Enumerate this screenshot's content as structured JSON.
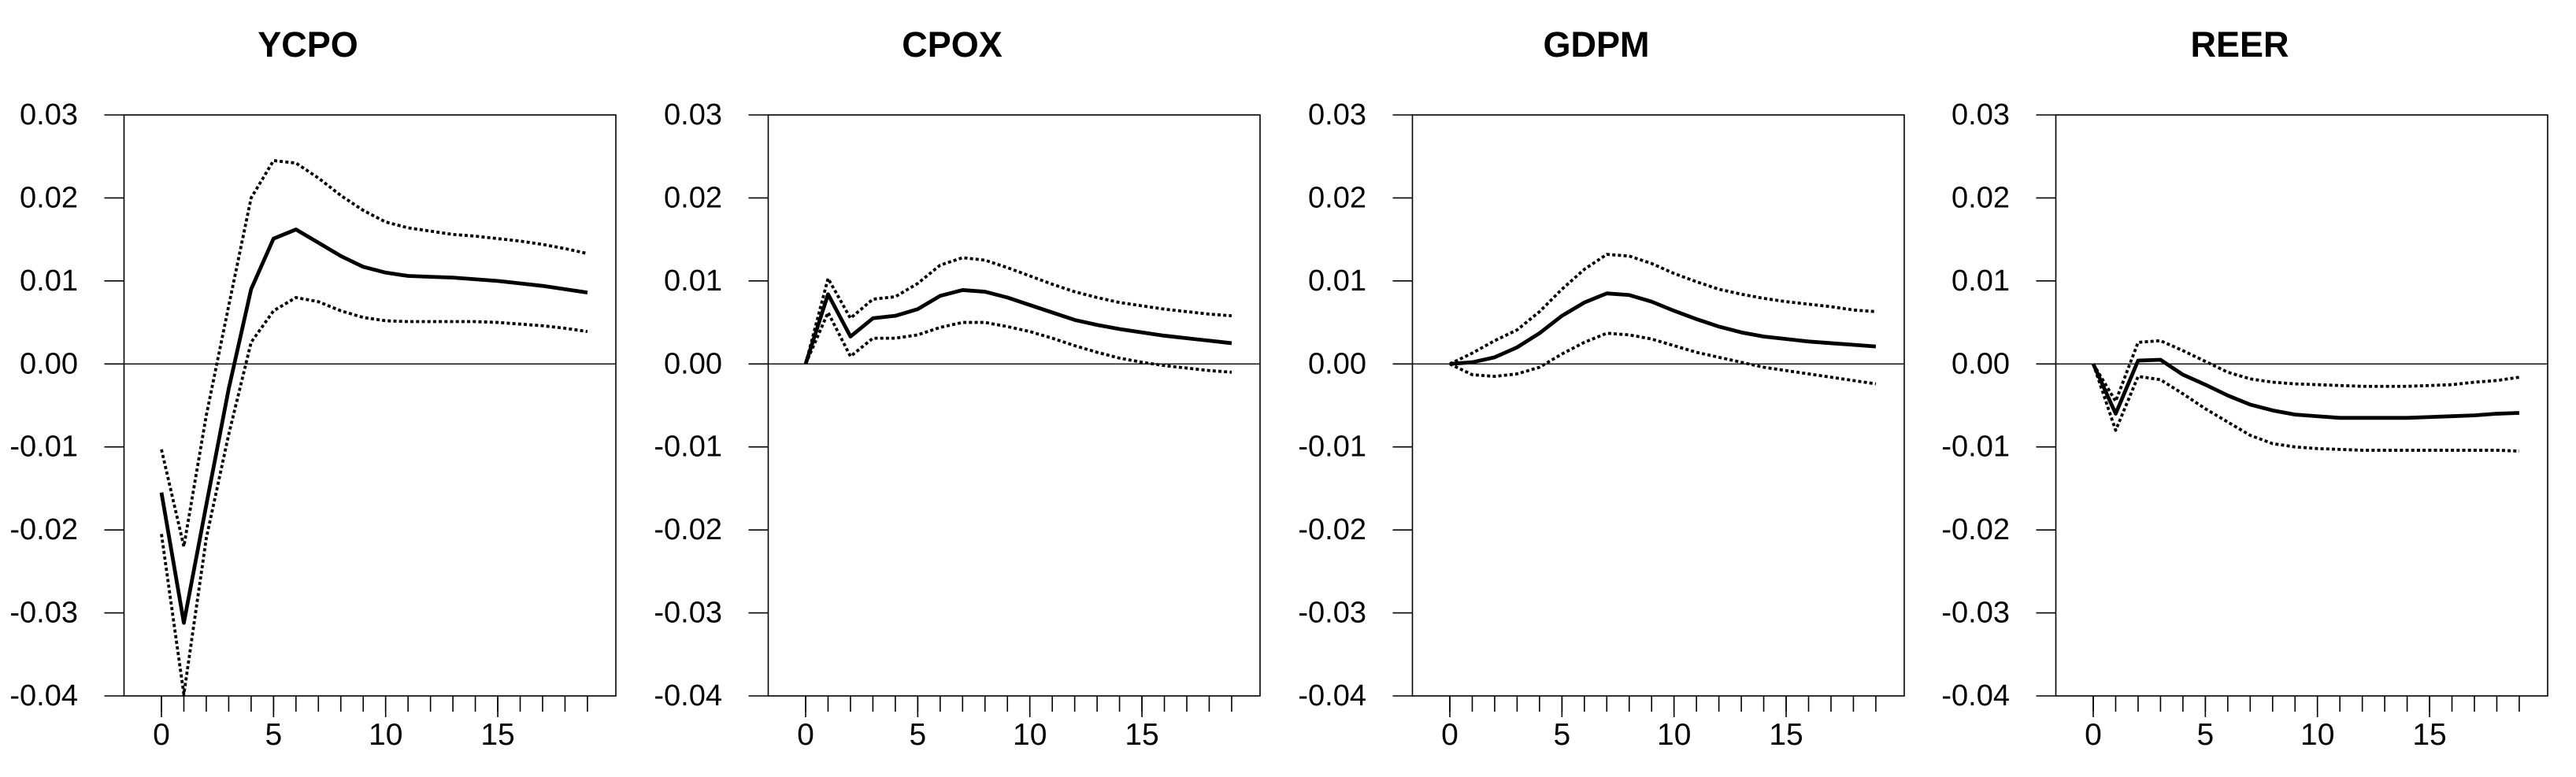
{
  "figure": {
    "kind": "impulse-response-grid",
    "background_color": "#ffffff",
    "line_color": "#000000",
    "panel_titles": [
      "YCPO",
      "CPOX",
      "GDPM",
      "REER"
    ]
  },
  "axes": {
    "ylim": [
      -0.04,
      0.03
    ],
    "y_ticks": [
      0.03,
      0.02,
      0.01,
      0.0,
      -0.01,
      -0.02,
      -0.03,
      -0.04
    ],
    "y_tick_labels": [
      "0.03",
      "0.02",
      "0.01",
      "0.00",
      "-0.01",
      "-0.02",
      "-0.03",
      "-0.04"
    ],
    "x_minor_ticks": [
      0,
      1,
      2,
      3,
      4,
      5,
      6,
      7,
      8,
      9,
      10,
      11,
      12,
      13,
      14,
      15,
      16,
      17,
      18,
      19
    ],
    "x_major_ticks": [
      0,
      5,
      10,
      15
    ],
    "x_major_labels": [
      "0",
      "5",
      "10",
      "15"
    ],
    "grid": false,
    "legend": "none",
    "zero_line": true
  },
  "chart_data": [
    {
      "type": "line",
      "title": "YCPO",
      "xlabel": "",
      "ylabel": "",
      "ylim": [
        -0.04,
        0.03
      ],
      "x": [
        0,
        1,
        2,
        3,
        4,
        5,
        6,
        7,
        8,
        9,
        10,
        11,
        12,
        13,
        14,
        15,
        16,
        17,
        18,
        19
      ],
      "series": [
        {
          "name": "point-estimate",
          "style": "solid",
          "values": [
            -0.0155,
            -0.0312,
            -0.017,
            -0.003,
            0.009,
            0.0151,
            0.0162,
            0.0146,
            0.013,
            0.0117,
            0.011,
            0.0106,
            0.0105,
            0.0104,
            0.0102,
            0.01,
            0.0097,
            0.0094,
            0.009,
            0.0086
          ]
        },
        {
          "name": "upper-confidence-band",
          "style": "dotted",
          "values": [
            -0.0103,
            -0.022,
            -0.0062,
            0.007,
            0.02,
            0.0245,
            0.0242,
            0.0224,
            0.0203,
            0.0185,
            0.0171,
            0.0164,
            0.016,
            0.0156,
            0.0154,
            0.0151,
            0.0148,
            0.0144,
            0.0139,
            0.0133
          ]
        },
        {
          "name": "lower-confidence-band",
          "style": "dotted",
          "values": [
            -0.0205,
            -0.0398,
            -0.021,
            -0.0085,
            0.0026,
            0.0064,
            0.008,
            0.0075,
            0.0064,
            0.0056,
            0.0052,
            0.0051,
            0.0051,
            0.0051,
            0.0051,
            0.005,
            0.0048,
            0.0046,
            0.0043,
            0.0039
          ]
        }
      ]
    },
    {
      "type": "line",
      "title": "CPOX",
      "xlabel": "",
      "ylabel": "",
      "ylim": [
        -0.04,
        0.03
      ],
      "x": [
        0,
        1,
        2,
        3,
        4,
        5,
        6,
        7,
        8,
        9,
        10,
        11,
        12,
        13,
        14,
        15,
        16,
        17,
        18,
        19
      ],
      "series": [
        {
          "name": "point-estimate",
          "style": "solid",
          "values": [
            0.0,
            0.0084,
            0.0033,
            0.0055,
            0.0058,
            0.0066,
            0.0082,
            0.0089,
            0.0087,
            0.008,
            0.0071,
            0.0062,
            0.0053,
            0.0047,
            0.0042,
            0.0038,
            0.0034,
            0.0031,
            0.0028,
            0.0025
          ]
        },
        {
          "name": "upper-confidence-band",
          "style": "dotted",
          "values": [
            0.0,
            0.0103,
            0.0055,
            0.0078,
            0.0081,
            0.0097,
            0.0119,
            0.0128,
            0.0125,
            0.0116,
            0.0106,
            0.0096,
            0.0087,
            0.008,
            0.0074,
            0.007,
            0.0066,
            0.0063,
            0.006,
            0.0058
          ]
        },
        {
          "name": "lower-confidence-band",
          "style": "dotted",
          "values": [
            0.0,
            0.0062,
            0.0009,
            0.0031,
            0.0031,
            0.0035,
            0.0044,
            0.005,
            0.005,
            0.0045,
            0.0039,
            0.0031,
            0.0022,
            0.0014,
            0.0007,
            0.0002,
            -0.0002,
            -0.0005,
            -0.0008,
            -0.001
          ]
        }
      ]
    },
    {
      "type": "line",
      "title": "GDPM",
      "xlabel": "",
      "ylabel": "",
      "ylim": [
        -0.04,
        0.03
      ],
      "x": [
        0,
        1,
        2,
        3,
        4,
        5,
        6,
        7,
        8,
        9,
        10,
        11,
        12,
        13,
        14,
        15,
        16,
        17,
        18,
        19
      ],
      "series": [
        {
          "name": "point-estimate",
          "style": "solid",
          "values": [
            0.0,
            0.0002,
            0.0008,
            0.002,
            0.0037,
            0.0058,
            0.0074,
            0.0085,
            0.0083,
            0.0075,
            0.0064,
            0.0054,
            0.0045,
            0.0038,
            0.0033,
            0.003,
            0.0027,
            0.0025,
            0.0023,
            0.0021
          ]
        },
        {
          "name": "upper-confidence-band",
          "style": "dotted",
          "values": [
            0.0,
            0.0013,
            0.0028,
            0.0041,
            0.0063,
            0.009,
            0.0114,
            0.0132,
            0.013,
            0.0121,
            0.0109,
            0.0099,
            0.009,
            0.0084,
            0.0079,
            0.0075,
            0.0072,
            0.0069,
            0.0065,
            0.0063
          ]
        },
        {
          "name": "lower-confidence-band",
          "style": "dotted",
          "values": [
            0.0,
            -0.0013,
            -0.0015,
            -0.0012,
            -0.0004,
            0.0012,
            0.0026,
            0.0037,
            0.0035,
            0.003,
            0.0022,
            0.0014,
            0.0008,
            0.0002,
            -0.0004,
            -0.0008,
            -0.0012,
            -0.0016,
            -0.002,
            -0.0024
          ]
        }
      ]
    },
    {
      "type": "line",
      "title": "REER",
      "xlabel": "",
      "ylabel": "",
      "ylim": [
        -0.04,
        0.03
      ],
      "x": [
        0,
        1,
        2,
        3,
        4,
        5,
        6,
        7,
        8,
        9,
        10,
        11,
        12,
        13,
        14,
        15,
        16,
        17,
        18,
        19
      ],
      "series": [
        {
          "name": "point-estimate",
          "style": "solid",
          "values": [
            0.0,
            -0.006,
            0.0004,
            0.0005,
            -0.0013,
            -0.0025,
            -0.0038,
            -0.0049,
            -0.0056,
            -0.0061,
            -0.0063,
            -0.0065,
            -0.0065,
            -0.0065,
            -0.0065,
            -0.0064,
            -0.0063,
            -0.0062,
            -0.006,
            -0.0059
          ]
        },
        {
          "name": "upper-confidence-band",
          "style": "dotted",
          "values": [
            0.0,
            -0.0045,
            0.0026,
            0.0028,
            0.0016,
            0.0003,
            -0.001,
            -0.0018,
            -0.0022,
            -0.0024,
            -0.0025,
            -0.0026,
            -0.0027,
            -0.0027,
            -0.0027,
            -0.0026,
            -0.0025,
            -0.0022,
            -0.002,
            -0.0016
          ]
        },
        {
          "name": "lower-confidence-band",
          "style": "dotted",
          "values": [
            0.0,
            -0.008,
            -0.0015,
            -0.0019,
            -0.0036,
            -0.0054,
            -0.007,
            -0.0086,
            -0.0096,
            -0.01,
            -0.0102,
            -0.0103,
            -0.0104,
            -0.0104,
            -0.0104,
            -0.0104,
            -0.0104,
            -0.0104,
            -0.0104,
            -0.0105
          ]
        }
      ]
    }
  ]
}
